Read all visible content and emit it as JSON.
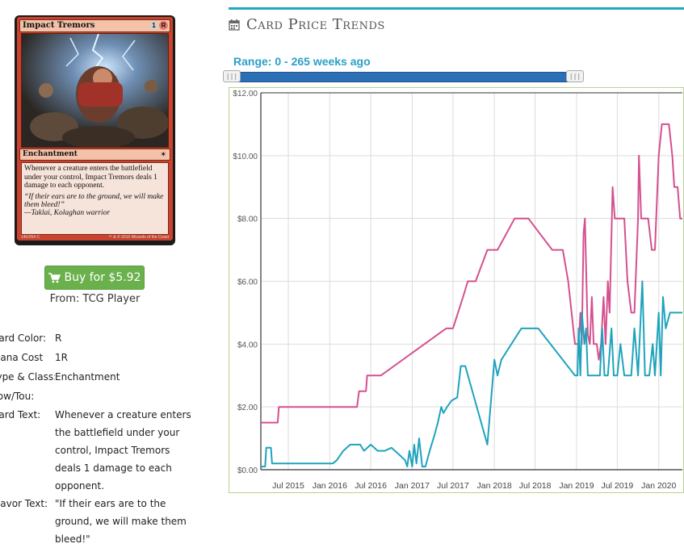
{
  "card": {
    "name": "Impact Tremors",
    "cost": [
      "1",
      "R"
    ],
    "type_line": "Enchantment",
    "rules_text": "Whenever a creature enters the battlefield under your control, Impact Tremors deals 1 damage to each opponent.",
    "flavor_text": "“If their ears are to the ground, we will make them bleed!”",
    "flavor_attribution": "—Taklai, Kolaghan warrior",
    "collector_number": "140/264 C",
    "copyright": "™ & © 2015 Wizards of the Coast"
  },
  "buy": {
    "label": "Buy for $5.92",
    "from": "From: TCG Player",
    "icon": "shopping-cart-icon",
    "color": "#6ab04c"
  },
  "details": [
    {
      "label": "Card Color:",
      "value": "R"
    },
    {
      "label": "Mana Cost",
      "value": "1R"
    },
    {
      "label": "Type & Class:",
      "value": "Enchantment"
    },
    {
      "label": "Pow/Tou:",
      "value": ""
    },
    {
      "label": "Card Text:",
      "value": "Whenever a creature enters the battlefield under your control, Impact Tremors deals 1 damage to each opponent."
    },
    {
      "label": "Flavor Text:",
      "value": "\"If their ears are to the ground, we will make them bleed!\""
    }
  ],
  "price_trends": {
    "title": "Card Price Trends",
    "icon": "calendar-icon",
    "range_label": "Range: 0 - 265 weeks ago",
    "accent": "#22a9c2"
  },
  "chart_data": {
    "type": "line",
    "ylim": [
      0,
      12
    ],
    "y_ticks": [
      "$0.00",
      "$2.00",
      "$4.00",
      "$6.00",
      "$8.00",
      "$10.00",
      "$12.00"
    ],
    "x_ticks": [
      "Jul 2015",
      "Jan 2016",
      "Jul 2016",
      "Jan 2017",
      "Jul 2017",
      "Jan 2018",
      "Jul 2018",
      "Jan 2019",
      "Jul 2019",
      "Jan 2020"
    ],
    "grid": true,
    "series": [
      {
        "color": "#d4508f",
        "points": [
          [
            "2015-03-01",
            1.5
          ],
          [
            "2015-05-15",
            1.5
          ],
          [
            "2015-05-20",
            2.0
          ],
          [
            "2016-05-01",
            2.0
          ],
          [
            "2016-05-10",
            2.5
          ],
          [
            "2016-06-10",
            2.5
          ],
          [
            "2016-06-15",
            3.0
          ],
          [
            "2016-08-15",
            3.0
          ],
          [
            "2017-06-01",
            4.5
          ],
          [
            "2017-07-01",
            4.5
          ],
          [
            "2017-08-15",
            5.5
          ],
          [
            "2017-09-05",
            6.0
          ],
          [
            "2017-10-10",
            6.0
          ],
          [
            "2017-12-01",
            7.0
          ],
          [
            "2018-01-15",
            7.0
          ],
          [
            "2018-04-01",
            8.0
          ],
          [
            "2018-06-01",
            8.0
          ],
          [
            "2018-09-15",
            7.0
          ],
          [
            "2018-11-01",
            7.0
          ],
          [
            "2018-11-25",
            6.0
          ],
          [
            "2018-12-10",
            5.0
          ],
          [
            "2018-12-25",
            4.0
          ],
          [
            "2019-01-10",
            4.0
          ],
          [
            "2019-01-18",
            5.0
          ],
          [
            "2019-01-24",
            4.0
          ],
          [
            "2019-02-01",
            7.5
          ],
          [
            "2019-02-07",
            8.0
          ],
          [
            "2019-02-12",
            6.5
          ],
          [
            "2019-02-20",
            4.3
          ],
          [
            "2019-03-01",
            4.0
          ],
          [
            "2019-03-10",
            5.5
          ],
          [
            "2019-03-18",
            4.0
          ],
          [
            "2019-04-01",
            4.0
          ],
          [
            "2019-04-10",
            3.5
          ],
          [
            "2019-04-20",
            4.0
          ],
          [
            "2019-05-01",
            5.5
          ],
          [
            "2019-05-10",
            4.0
          ],
          [
            "2019-05-20",
            6.0
          ],
          [
            "2019-05-28",
            5.0
          ],
          [
            "2019-06-10",
            9.0
          ],
          [
            "2019-06-20",
            8.0
          ],
          [
            "2019-07-15",
            8.0
          ],
          [
            "2019-08-01",
            8.0
          ],
          [
            "2019-08-15",
            6.0
          ],
          [
            "2019-09-01",
            5.0
          ],
          [
            "2019-09-15",
            5.0
          ],
          [
            "2019-10-01",
            8.0
          ],
          [
            "2019-10-05",
            10.0
          ],
          [
            "2019-10-15",
            8.0
          ],
          [
            "2019-11-15",
            8.0
          ],
          [
            "2019-12-01",
            7.0
          ],
          [
            "2019-12-15",
            7.0
          ],
          [
            "2020-01-01",
            10.0
          ],
          [
            "2020-01-15",
            11.0
          ],
          [
            "2020-02-15",
            11.0
          ],
          [
            "2020-03-01",
            10.0
          ],
          [
            "2020-03-10",
            9.0
          ],
          [
            "2020-03-25",
            9.0
          ],
          [
            "2020-04-05",
            8.0
          ],
          [
            "2020-04-15",
            8.0
          ]
        ]
      },
      {
        "color": "#1fa3bd",
        "points": [
          [
            "2015-03-01",
            0.1
          ],
          [
            "2015-03-20",
            0.1
          ],
          [
            "2015-03-25",
            0.7
          ],
          [
            "2015-04-15",
            0.7
          ],
          [
            "2015-04-20",
            0.2
          ],
          [
            "2015-05-10",
            0.2
          ],
          [
            "2016-01-15",
            0.2
          ],
          [
            "2016-02-01",
            0.3
          ],
          [
            "2016-03-01",
            0.6
          ],
          [
            "2016-04-01",
            0.8
          ],
          [
            "2016-05-15",
            0.8
          ],
          [
            "2016-06-01",
            0.6
          ],
          [
            "2016-07-01",
            0.8
          ],
          [
            "2016-08-01",
            0.6
          ],
          [
            "2016-09-01",
            0.6
          ],
          [
            "2016-10-01",
            0.7
          ],
          [
            "2016-11-01",
            0.5
          ],
          [
            "2016-12-01",
            0.3
          ],
          [
            "2016-12-10",
            0.1
          ],
          [
            "2016-12-20",
            0.6
          ],
          [
            "2017-01-01",
            0.1
          ],
          [
            "2017-01-10",
            0.8
          ],
          [
            "2017-01-20",
            0.2
          ],
          [
            "2017-02-01",
            1.0
          ],
          [
            "2017-02-15",
            0.1
          ],
          [
            "2017-03-01",
            0.1
          ],
          [
            "2017-03-20",
            0.6
          ],
          [
            "2017-04-10",
            1.1
          ],
          [
            "2017-04-25",
            1.5
          ],
          [
            "2017-05-10",
            2.0
          ],
          [
            "2017-05-20",
            1.8
          ],
          [
            "2017-06-05",
            2.0
          ],
          [
            "2017-06-25",
            2.2
          ],
          [
            "2017-07-20",
            2.3
          ],
          [
            "2017-08-05",
            3.3
          ],
          [
            "2017-08-25",
            3.3
          ],
          [
            "2017-12-01",
            0.8
          ],
          [
            "2018-01-01",
            3.5
          ],
          [
            "2018-01-15",
            3.0
          ],
          [
            "2018-02-01",
            3.5
          ],
          [
            "2018-05-01",
            4.5
          ],
          [
            "2018-07-15",
            4.5
          ],
          [
            "2018-12-25",
            3.0
          ],
          [
            "2019-01-05",
            3.0
          ],
          [
            "2019-01-10",
            4.5
          ],
          [
            "2019-01-18",
            3.0
          ],
          [
            "2019-01-25",
            5.0
          ],
          [
            "2019-02-05",
            4.0
          ],
          [
            "2019-02-12",
            4.5
          ],
          [
            "2019-02-20",
            3.0
          ],
          [
            "2019-04-15",
            3.0
          ],
          [
            "2019-04-25",
            4.5
          ],
          [
            "2019-05-05",
            3.0
          ],
          [
            "2019-05-20",
            3.0
          ],
          [
            "2019-06-05",
            4.5
          ],
          [
            "2019-06-15",
            3.0
          ],
          [
            "2019-07-01",
            3.0
          ],
          [
            "2019-07-15",
            4.0
          ],
          [
            "2019-08-01",
            3.0
          ],
          [
            "2019-09-01",
            3.0
          ],
          [
            "2019-09-15",
            4.5
          ],
          [
            "2019-10-01",
            3.0
          ],
          [
            "2019-10-20",
            6.0
          ],
          [
            "2019-11-01",
            3.0
          ],
          [
            "2019-11-20",
            3.0
          ],
          [
            "2019-12-05",
            4.0
          ],
          [
            "2019-12-15",
            3.0
          ],
          [
            "2020-01-01",
            5.0
          ],
          [
            "2020-01-10",
            3.0
          ],
          [
            "2020-01-20",
            5.5
          ],
          [
            "2020-02-01",
            4.5
          ],
          [
            "2020-02-20",
            5.0
          ],
          [
            "2020-04-15",
            5.0
          ]
        ]
      }
    ]
  }
}
